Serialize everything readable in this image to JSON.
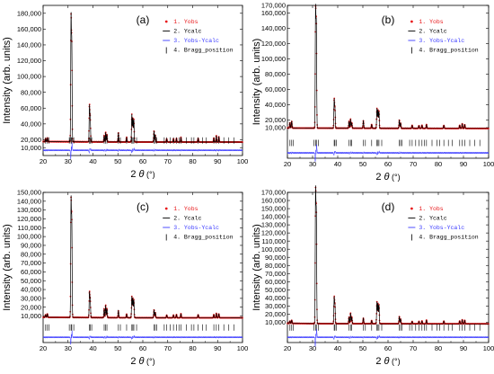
{
  "chart_data": [
    {
      "type": "line",
      "panel_label": "(a)",
      "xlabel": "2θ (°)",
      "ylabel": "Intensity (arb. units)",
      "xlim": [
        20,
        100
      ],
      "ylim": [
        0,
        190000
      ],
      "xticks": [
        "20",
        "30",
        "40",
        "50",
        "60",
        "70",
        "80",
        "90",
        "100"
      ],
      "yticks": [
        "10,000",
        "20,000",
        "40,000",
        "60,000",
        "80,000",
        "100,000",
        "120,000",
        "140,000",
        "160,000",
        "180,000"
      ],
      "ytick_values": [
        10000,
        20000,
        40000,
        60000,
        80000,
        100000,
        120000,
        140000,
        160000,
        180000
      ],
      "baseline": 17000,
      "peaks": [
        [
          21.0,
          4000
        ],
        [
          21.7,
          5000
        ],
        [
          31.2,
          155000
        ],
        [
          31.5,
          120000
        ],
        [
          38.6,
          45000
        ],
        [
          38.9,
          30000
        ],
        [
          44.5,
          8000
        ],
        [
          45.1,
          12000
        ],
        [
          45.6,
          9000
        ],
        [
          50.2,
          12000
        ],
        [
          53.5,
          6000
        ],
        [
          55.6,
          35000
        ],
        [
          56.0,
          30000
        ],
        [
          56.4,
          28000
        ],
        [
          64.5,
          14000
        ],
        [
          65.0,
          9000
        ],
        [
          69.6,
          4000
        ],
        [
          72.3,
          4000
        ],
        [
          73.5,
          4500
        ],
        [
          75.3,
          6000
        ],
        [
          82.2,
          5000
        ],
        [
          88.5,
          5000
        ],
        [
          89.5,
          8000
        ],
        [
          90.5,
          7000
        ]
      ],
      "bragg_positions": [
        21.0,
        21.7,
        22.4,
        30.5,
        31.2,
        31.5,
        32.3,
        38.6,
        38.9,
        39.5,
        44.5,
        45.1,
        45.6,
        50.2,
        51.0,
        53.5,
        55.6,
        56.0,
        56.4,
        57.5,
        64.5,
        65.0,
        65.6,
        68.6,
        69.6,
        71.0,
        72.3,
        73.5,
        74.5,
        75.3,
        77.5,
        79.5,
        80.5,
        82.2,
        84.0,
        85.5,
        88.5,
        89.5,
        90.5,
        92.5,
        94.5,
        96.5
      ],
      "legend": [
        "1. Yobs",
        "2. Ycalc",
        "3. Yobs-Ycalc",
        "4. Bragg_position"
      ]
    },
    {
      "type": "line",
      "panel_label": "(b)",
      "xlabel": "2θ (°)",
      "ylabel": "Intensity (arb. units)",
      "xlim": [
        20,
        100
      ],
      "ylim": [
        -30000,
        170000
      ],
      "xticks": [
        "20",
        "30",
        "40",
        "50",
        "60",
        "70",
        "80",
        "90",
        "100"
      ],
      "yticks": [
        "10,000",
        "20,000",
        "40,000",
        "60,000",
        "80,000",
        "100,000",
        "120,000",
        "140,000",
        "160,000",
        "170,000"
      ],
      "ytick_values": [
        10000,
        20000,
        40000,
        60000,
        80000,
        100000,
        120000,
        140000,
        160000,
        170000
      ],
      "baseline": 9000,
      "peaks": [
        [
          21.0,
          7000
        ],
        [
          21.7,
          9000
        ],
        [
          31.2,
          152000
        ],
        [
          31.5,
          130000
        ],
        [
          38.6,
          37000
        ],
        [
          38.9,
          25000
        ],
        [
          44.5,
          9000
        ],
        [
          45.1,
          12000
        ],
        [
          45.6,
          7000
        ],
        [
          50.2,
          10000
        ],
        [
          53.5,
          5000
        ],
        [
          55.6,
          26000
        ],
        [
          56.0,
          24000
        ],
        [
          56.4,
          22000
        ],
        [
          64.5,
          11000
        ],
        [
          65.0,
          7000
        ],
        [
          69.6,
          4000
        ],
        [
          72.3,
          3500
        ],
        [
          73.5,
          4000
        ],
        [
          75.3,
          5000
        ],
        [
          82.2,
          4000
        ],
        [
          88.5,
          4000
        ],
        [
          89.5,
          6000
        ],
        [
          90.5,
          5000
        ]
      ],
      "bragg_positions": [
        21.0,
        21.7,
        22.4,
        30.5,
        31.2,
        31.5,
        32.3,
        38.6,
        38.9,
        39.5,
        44.5,
        45.1,
        45.6,
        50.2,
        51.0,
        53.5,
        55.6,
        56.0,
        56.4,
        57.5,
        64.5,
        65.0,
        65.6,
        68.6,
        69.6,
        71.0,
        72.3,
        73.5,
        74.5,
        75.3,
        77.5,
        79.5,
        80.5,
        82.2,
        84.0,
        85.5,
        88.5,
        89.5,
        90.5,
        92.5,
        94.5,
        96.5
      ],
      "legend": [
        "1. Yobs",
        "2. Ycalc",
        "3. Yobs-Ycalc",
        "4. Bragg_position"
      ]
    },
    {
      "type": "line",
      "panel_label": "(c)",
      "xlabel": "2θ (°)",
      "ylabel": "Intensity (arb. units)",
      "xlim": [
        20,
        100
      ],
      "ylim": [
        -20000,
        150000
      ],
      "xticks": [
        "20",
        "30",
        "40",
        "50",
        "60",
        "70",
        "80",
        "90",
        "100"
      ],
      "yticks": [
        "10,000",
        "20,000",
        "30,000",
        "40,000",
        "50,000",
        "60,000",
        "70,000",
        "80,000",
        "90,000",
        "100,000",
        "110,000",
        "120,000",
        "130,000",
        "140,000",
        "150,000"
      ],
      "ytick_values": [
        10000,
        20000,
        30000,
        40000,
        50000,
        60000,
        70000,
        80000,
        90000,
        100000,
        110000,
        120000,
        130000,
        140000,
        150000
      ],
      "baseline": 8000,
      "peaks": [
        [
          21.0,
          3000
        ],
        [
          21.7,
          4000
        ],
        [
          31.2,
          130000
        ],
        [
          31.5,
          105000
        ],
        [
          38.6,
          28000
        ],
        [
          38.9,
          20000
        ],
        [
          44.5,
          10000
        ],
        [
          45.1,
          14000
        ],
        [
          45.6,
          10000
        ],
        [
          50.2,
          8000
        ],
        [
          53.5,
          4000
        ],
        [
          55.6,
          24000
        ],
        [
          56.0,
          22000
        ],
        [
          56.4,
          20000
        ],
        [
          64.5,
          9000
        ],
        [
          65.0,
          6000
        ],
        [
          69.6,
          3000
        ],
        [
          72.3,
          3000
        ],
        [
          73.5,
          3500
        ],
        [
          75.3,
          4500
        ],
        [
          82.2,
          3500
        ],
        [
          88.5,
          3500
        ],
        [
          89.5,
          5000
        ],
        [
          90.5,
          4500
        ]
      ],
      "bragg_positions": [
        21.0,
        21.7,
        22.4,
        30.5,
        31.2,
        31.5,
        32.3,
        38.6,
        38.9,
        39.5,
        44.5,
        45.1,
        45.6,
        50.2,
        51.0,
        53.5,
        55.6,
        56.0,
        56.4,
        57.5,
        64.5,
        65.0,
        65.6,
        68.6,
        69.6,
        71.0,
        72.3,
        73.5,
        74.5,
        75.3,
        77.5,
        79.5,
        80.5,
        82.2,
        84.0,
        85.5,
        88.5,
        89.5,
        90.5,
        92.5,
        94.5,
        96.5
      ],
      "legend": [
        "1. Yobs",
        "2. Ycalc",
        "3. Yobs-Ycalc",
        "4. Bragg_position"
      ]
    },
    {
      "type": "line",
      "panel_label": "(d)",
      "xlabel": "2θ (°)",
      "ylabel": "Intensity (arb. units)",
      "xlim": [
        20,
        100
      ],
      "ylim": [
        -15000,
        170000
      ],
      "xticks": [
        "20",
        "30",
        "40",
        "50",
        "60",
        "70",
        "80",
        "90",
        "100"
      ],
      "yticks": [
        "10,000",
        "20,000",
        "30,000",
        "40,000",
        "50,000",
        "60,000",
        "70,000",
        "80,000",
        "90,000",
        "100,000",
        "110,000",
        "120,000",
        "130,000",
        "140,000",
        "150,000",
        "160,000",
        "170,000"
      ],
      "ytick_values": [
        10000,
        20000,
        30000,
        40000,
        50000,
        60000,
        70000,
        80000,
        90000,
        100000,
        110000,
        120000,
        130000,
        140000,
        150000,
        160000,
        170000
      ],
      "baseline": 8000,
      "peaks": [
        [
          21.0,
          3000
        ],
        [
          21.7,
          4000
        ],
        [
          31.2,
          160000
        ],
        [
          31.5,
          130000
        ],
        [
          38.6,
          32000
        ],
        [
          38.9,
          22000
        ],
        [
          44.5,
          8000
        ],
        [
          45.1,
          13000
        ],
        [
          45.6,
          8000
        ],
        [
          50.2,
          7000
        ],
        [
          53.5,
          4000
        ],
        [
          55.6,
          27000
        ],
        [
          56.0,
          25000
        ],
        [
          56.4,
          23000
        ],
        [
          64.5,
          9000
        ],
        [
          65.0,
          6000
        ],
        [
          69.6,
          3000
        ],
        [
          72.3,
          3000
        ],
        [
          73.5,
          3500
        ],
        [
          75.3,
          4500
        ],
        [
          82.2,
          3500
        ],
        [
          88.5,
          3500
        ],
        [
          89.5,
          5000
        ],
        [
          90.5,
          4500
        ]
      ],
      "bragg_positions": [
        21.0,
        21.7,
        22.4,
        30.5,
        31.2,
        31.5,
        32.3,
        38.6,
        38.9,
        39.5,
        44.5,
        45.1,
        45.6,
        50.2,
        51.0,
        53.5,
        55.6,
        56.0,
        56.4,
        57.5,
        64.5,
        65.0,
        65.6,
        68.6,
        69.6,
        71.0,
        72.3,
        73.5,
        74.5,
        75.3,
        77.5,
        79.5,
        80.5,
        82.2,
        84.0,
        85.5,
        88.5,
        89.5,
        90.5,
        92.5,
        94.5,
        96.5
      ],
      "legend": [
        "1. Yobs",
        "2. Ycalc",
        "3. Yobs-Ycalc",
        "4. Bragg_position"
      ]
    }
  ],
  "colors": {
    "yobs": "#e8191b",
    "ycalc": "#000000",
    "diff": "#3b3bff",
    "bragg": "#000000"
  }
}
